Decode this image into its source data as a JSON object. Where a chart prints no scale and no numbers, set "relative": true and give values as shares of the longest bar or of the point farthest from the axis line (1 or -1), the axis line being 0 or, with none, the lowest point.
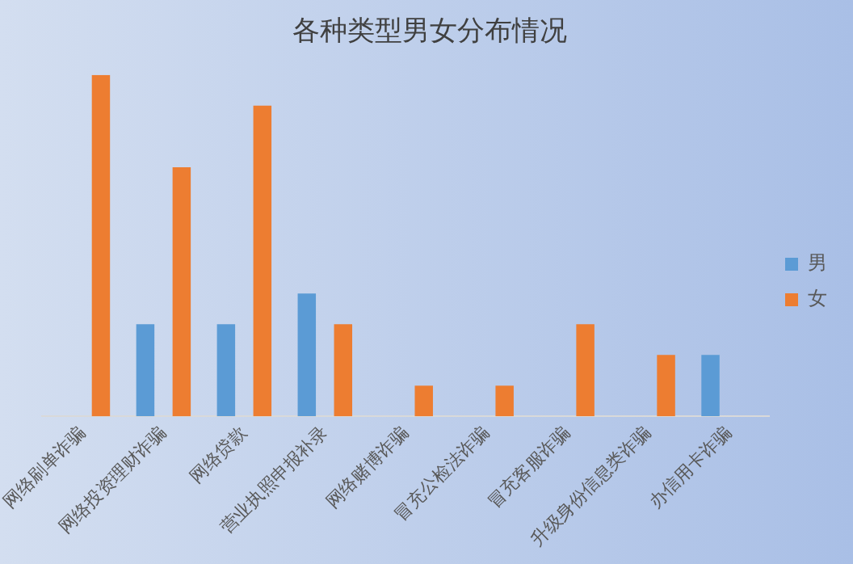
{
  "chart_data": {
    "type": "bar",
    "title": "各种类型男女分布情况",
    "relative": true,
    "categories": [
      "网络刷单诈骗",
      "网络投资理财诈骗",
      "网络贷款",
      "营业执照申报补录",
      "网络赌博诈骗",
      "冒充公检法诈骗",
      "冒充客服诈骗",
      "升级身份信息类诈骗",
      "办信用卡诈骗"
    ],
    "series": [
      {
        "name": "男",
        "color": "#5b9bd5",
        "values": [
          null,
          0.27,
          0.27,
          0.36,
          null,
          null,
          null,
          null,
          0.18
        ]
      },
      {
        "name": "女",
        "color": "#ed7d31",
        "values": [
          1,
          0.73,
          0.91,
          0.27,
          0.09,
          0.09,
          0.27,
          0.18,
          null
        ]
      }
    ],
    "grid": false,
    "legend": "right"
  }
}
